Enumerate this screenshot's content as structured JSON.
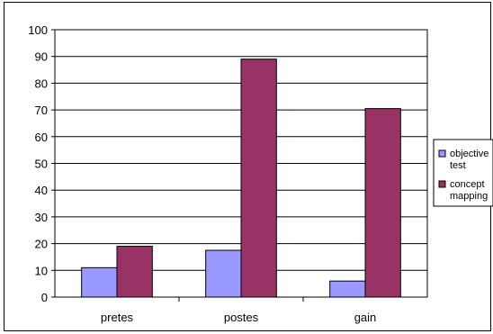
{
  "chart_data": {
    "type": "bar",
    "categories": [
      "pretes",
      "postes",
      "gain"
    ],
    "series": [
      {
        "name": "objective test",
        "name_lines": [
          "objective",
          "test"
        ],
        "color": "#9999ff",
        "values": [
          11,
          17.5,
          6
        ]
      },
      {
        "name": "concept mapping",
        "name_lines": [
          "concept",
          "mapping"
        ],
        "color": "#993366",
        "values": [
          19,
          89,
          70.5
        ]
      }
    ],
    "ylim": [
      0,
      100
    ],
    "yticks": [
      0,
      10,
      20,
      30,
      40,
      50,
      60,
      70,
      80,
      90,
      100
    ],
    "grid": true,
    "legend_position": "right",
    "title": "",
    "xlabel": "",
    "ylabel": ""
  }
}
